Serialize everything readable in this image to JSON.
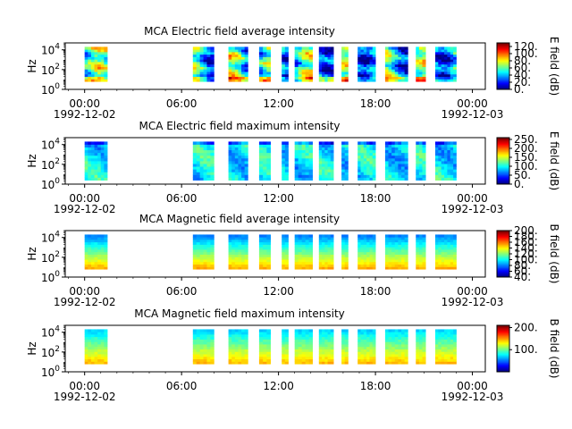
{
  "chart_data": [
    {
      "type": "heatmap",
      "title": "MCA  Electric field average intensity",
      "ylabel": "Hz",
      "y_ticks": [
        "10^0",
        "10^2",
        "10^4"
      ],
      "ylim_log10": [
        0,
        4.7
      ],
      "data_ylim_log10": [
        0.8,
        4.3
      ],
      "x_ticks": [
        "00:00",
        "06:00",
        "12:00",
        "18:00",
        "00:00"
      ],
      "x_dates": [
        "1992-12-02",
        "1992-12-03"
      ],
      "xlim_hours": [
        -1.2,
        24.8
      ],
      "colorbar": {
        "label": "E field (dB)",
        "ticks": [
          "0.",
          "20.",
          "40.",
          "60.",
          "80.",
          "100.",
          "120."
        ],
        "range": [
          0,
          130
        ]
      },
      "style": "avg-e",
      "segments_hours": [
        [
          0,
          1.4
        ],
        [
          6.7,
          8.0
        ],
        [
          8.9,
          10.1
        ],
        [
          10.8,
          11.5
        ],
        [
          12.2,
          12.6
        ],
        [
          13.0,
          14.1
        ],
        [
          14.5,
          15.4
        ],
        [
          15.9,
          16.3
        ],
        [
          16.9,
          18.0
        ],
        [
          18.6,
          20.0
        ],
        [
          20.5,
          21.1
        ],
        [
          21.7,
          23.0
        ]
      ]
    },
    {
      "type": "heatmap",
      "title": "MCA  Electric field maximum intensity",
      "ylabel": "Hz",
      "y_ticks": [
        "10^0",
        "10^2",
        "10^4"
      ],
      "ylim_log10": [
        0,
        4.7
      ],
      "data_ylim_log10": [
        0.4,
        4.3
      ],
      "x_ticks": [
        "00:00",
        "06:00",
        "12:00",
        "18:00",
        "00:00"
      ],
      "x_dates": [
        "1992-12-02",
        "1992-12-03"
      ],
      "xlim_hours": [
        -1.2,
        24.8
      ],
      "colorbar": {
        "label": "E field (dB)",
        "ticks": [
          "0.",
          "50.",
          "100.",
          "150.",
          "200.",
          "250."
        ],
        "range": [
          0,
          260
        ]
      },
      "style": "max-e",
      "segments_hours": [
        [
          0,
          1.4
        ],
        [
          6.7,
          8.0
        ],
        [
          8.9,
          10.1
        ],
        [
          10.8,
          11.5
        ],
        [
          12.2,
          12.6
        ],
        [
          13.0,
          14.1
        ],
        [
          14.5,
          15.4
        ],
        [
          15.9,
          16.3
        ],
        [
          16.9,
          18.0
        ],
        [
          18.6,
          20.0
        ],
        [
          20.5,
          21.1
        ],
        [
          21.7,
          23.0
        ]
      ]
    },
    {
      "type": "heatmap",
      "title": "MCA  Magnetic field average intensity",
      "ylabel": "Hz",
      "y_ticks": [
        "10^0",
        "10^2",
        "10^4"
      ],
      "ylim_log10": [
        0,
        4.7
      ],
      "data_ylim_log10": [
        0.8,
        4.3
      ],
      "x_ticks": [
        "00:00",
        "06:00",
        "12:00",
        "18:00",
        "00:00"
      ],
      "x_dates": [
        "1992-12-02",
        "1992-12-03"
      ],
      "xlim_hours": [
        -1.2,
        24.8
      ],
      "colorbar": {
        "label": "B field (dB)",
        "ticks": [
          "40.",
          "60.",
          "80.",
          "100.",
          "120.",
          "140.",
          "160.",
          "180.",
          "200."
        ],
        "range": [
          40,
          200
        ]
      },
      "style": "avg-b",
      "segments_hours": [
        [
          0,
          1.4
        ],
        [
          6.7,
          8.0
        ],
        [
          8.9,
          10.1
        ],
        [
          10.8,
          11.5
        ],
        [
          12.2,
          12.6
        ],
        [
          13.0,
          14.1
        ],
        [
          14.5,
          15.4
        ],
        [
          15.9,
          16.3
        ],
        [
          16.9,
          18.0
        ],
        [
          18.6,
          20.0
        ],
        [
          20.5,
          21.1
        ],
        [
          21.7,
          23.0
        ]
      ]
    },
    {
      "type": "heatmap",
      "title": "MCA  Magnetic field maximum intensity",
      "ylabel": "Hz",
      "y_ticks": [
        "10^0",
        "10^2",
        "10^4"
      ],
      "ylim_log10": [
        0,
        4.7
      ],
      "data_ylim_log10": [
        0.8,
        4.3
      ],
      "x_ticks": [
        "00:00",
        "06:00",
        "12:00",
        "18:00",
        "00:00"
      ],
      "x_dates": [
        "1992-12-02",
        "1992-12-03"
      ],
      "xlim_hours": [
        -1.2,
        24.8
      ],
      "colorbar": {
        "label": "B field (dB)",
        "ticks": [
          "100.",
          "200."
        ],
        "range": [
          0,
          210
        ]
      },
      "style": "max-b",
      "segments_hours": [
        [
          0,
          1.4
        ],
        [
          6.7,
          8.0
        ],
        [
          8.9,
          10.1
        ],
        [
          10.8,
          11.5
        ],
        [
          12.2,
          12.6
        ],
        [
          13.0,
          14.1
        ],
        [
          14.5,
          15.4
        ],
        [
          15.9,
          16.3
        ],
        [
          16.9,
          18.0
        ],
        [
          18.6,
          20.0
        ],
        [
          20.5,
          21.1
        ],
        [
          21.7,
          23.0
        ]
      ]
    }
  ]
}
